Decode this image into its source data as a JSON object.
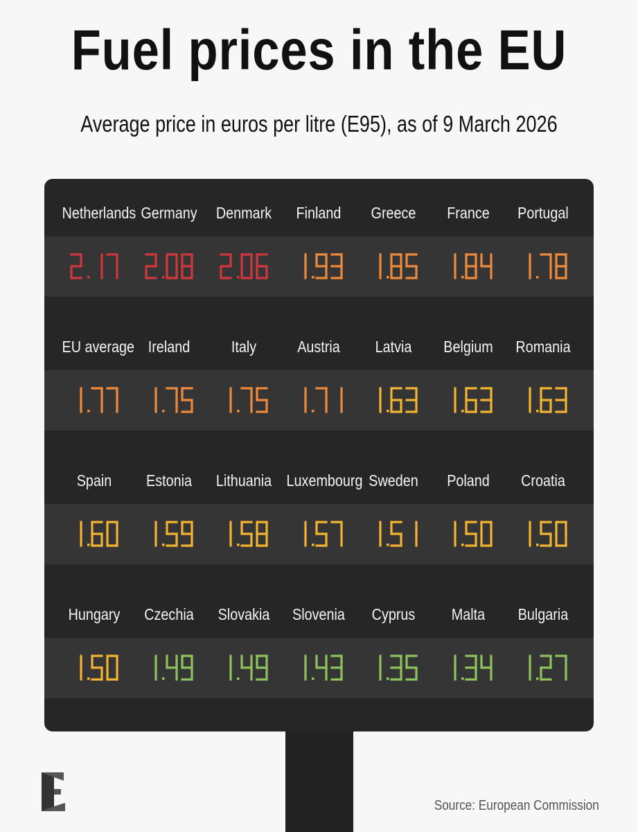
{
  "header": {
    "title": "Fuel prices in the EU",
    "subtitle": "Average price in euros per litre (E95), as of 9 March 2026"
  },
  "footer": {
    "source": "Source: European Commission",
    "logo": "E-letter-logo"
  },
  "colors": {
    "background": "#f7f7f7",
    "board": "#262626",
    "band": "#353535",
    "red": "#d0373c",
    "orange": "#ee8a3a",
    "yellow": "#f3b431",
    "green": "#8ec25d"
  },
  "chart_data": {
    "type": "table",
    "title": "Fuel prices in the EU",
    "subtitle": "Average price in euros per litre (E95), as of 9 March 2026",
    "unit": "euros per litre",
    "rows": [
      [
        {
          "country": "Netherlands",
          "price": "2.17",
          "color": "#d0373c"
        },
        {
          "country": "Germany",
          "price": "2.08",
          "color": "#d0373c"
        },
        {
          "country": "Denmark",
          "price": "2.06",
          "color": "#d0373c"
        },
        {
          "country": "Finland",
          "price": "1.93",
          "color": "#ee8a3a"
        },
        {
          "country": "Greece",
          "price": "1.85",
          "color": "#ee8a3a"
        },
        {
          "country": "France",
          "price": "1.84",
          "color": "#ee8a3a"
        },
        {
          "country": "Portugal",
          "price": "1.78",
          "color": "#ee8a3a"
        }
      ],
      [
        {
          "country": "EU average",
          "price": "1.77",
          "color": "#ee8a3a"
        },
        {
          "country": "Ireland",
          "price": "1.75",
          "color": "#ee8a3a"
        },
        {
          "country": "Italy",
          "price": "1.75",
          "color": "#ee8a3a"
        },
        {
          "country": "Austria",
          "price": "1.71",
          "color": "#ee8a3a"
        },
        {
          "country": "Latvia",
          "price": "1.63",
          "color": "#f3b431"
        },
        {
          "country": "Belgium",
          "price": "1.63",
          "color": "#f3b431"
        },
        {
          "country": "Romania",
          "price": "1.63",
          "color": "#f3b431"
        }
      ],
      [
        {
          "country": "Spain",
          "price": "1.60",
          "color": "#f3b431"
        },
        {
          "country": "Estonia",
          "price": "1.59",
          "color": "#f3b431"
        },
        {
          "country": "Lithuania",
          "price": "1.58",
          "color": "#f3b431"
        },
        {
          "country": "Luxembourg",
          "price": "1.57",
          "color": "#f3b431"
        },
        {
          "country": "Sweden",
          "price": "1.51",
          "color": "#f3b431"
        },
        {
          "country": "Poland",
          "price": "1.50",
          "color": "#f3b431"
        },
        {
          "country": "Croatia",
          "price": "1.50",
          "color": "#f3b431"
        }
      ],
      [
        {
          "country": "Hungary",
          "price": "1.50",
          "color": "#f3b431"
        },
        {
          "country": "Czechia",
          "price": "1.49",
          "color": "#8ec25d"
        },
        {
          "country": "Slovakia",
          "price": "1.49",
          "color": "#8ec25d"
        },
        {
          "country": "Slovenia",
          "price": "1.43",
          "color": "#8ec25d"
        },
        {
          "country": "Cyprus",
          "price": "1.35",
          "color": "#8ec25d"
        },
        {
          "country": "Malta",
          "price": "1.34",
          "color": "#8ec25d"
        },
        {
          "country": "Bulgaria",
          "price": "1.27",
          "color": "#8ec25d"
        }
      ]
    ]
  }
}
